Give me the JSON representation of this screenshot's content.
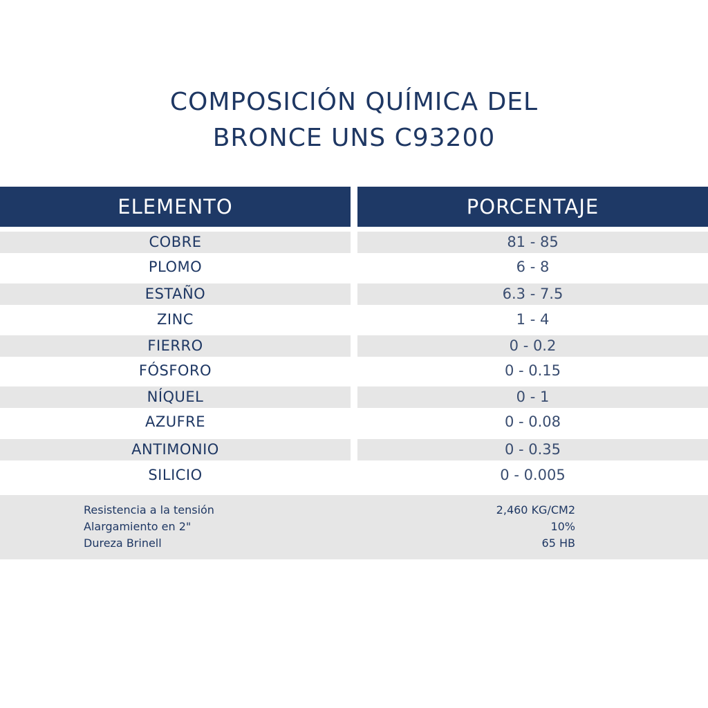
{
  "title": {
    "line1": "COMPOSICIÓN QUÍMICA DEL",
    "line2": "BRONCE UNS C93200"
  },
  "table": {
    "headers": [
      "ELEMENTO",
      "PORCENTAJE"
    ],
    "header_color": "#1e3966",
    "shade_color": "#e6e6e6",
    "rows": [
      {
        "element": "COBRE",
        "percent": "81 - 85"
      },
      {
        "element": "PLOMO",
        "percent": "6 - 8"
      },
      {
        "element": "ESTAÑO",
        "percent": "6.3 - 7.5"
      },
      {
        "element": "ZINC",
        "percent": "1 - 4"
      },
      {
        "element": "FIERRO",
        "percent": "0 - 0.2"
      },
      {
        "element": "FÓSFORO",
        "percent": "0 - 0.15"
      },
      {
        "element": "NÍQUEL",
        "percent": "0 - 1"
      },
      {
        "element": "AZUFRE",
        "percent": "0 - 0.08"
      },
      {
        "element": "ANTIMONIO",
        "percent": "0 - 0.35"
      },
      {
        "element": "SILICIO",
        "percent": "0 - 0.005"
      }
    ]
  },
  "properties": [
    {
      "label": "Resistencia a la tensión",
      "value": "2,460 KG/CM2"
    },
    {
      "label": "Alargamiento en 2\"",
      "value": "10%"
    },
    {
      "label": "Dureza Brinell",
      "value": "65 HB"
    }
  ]
}
